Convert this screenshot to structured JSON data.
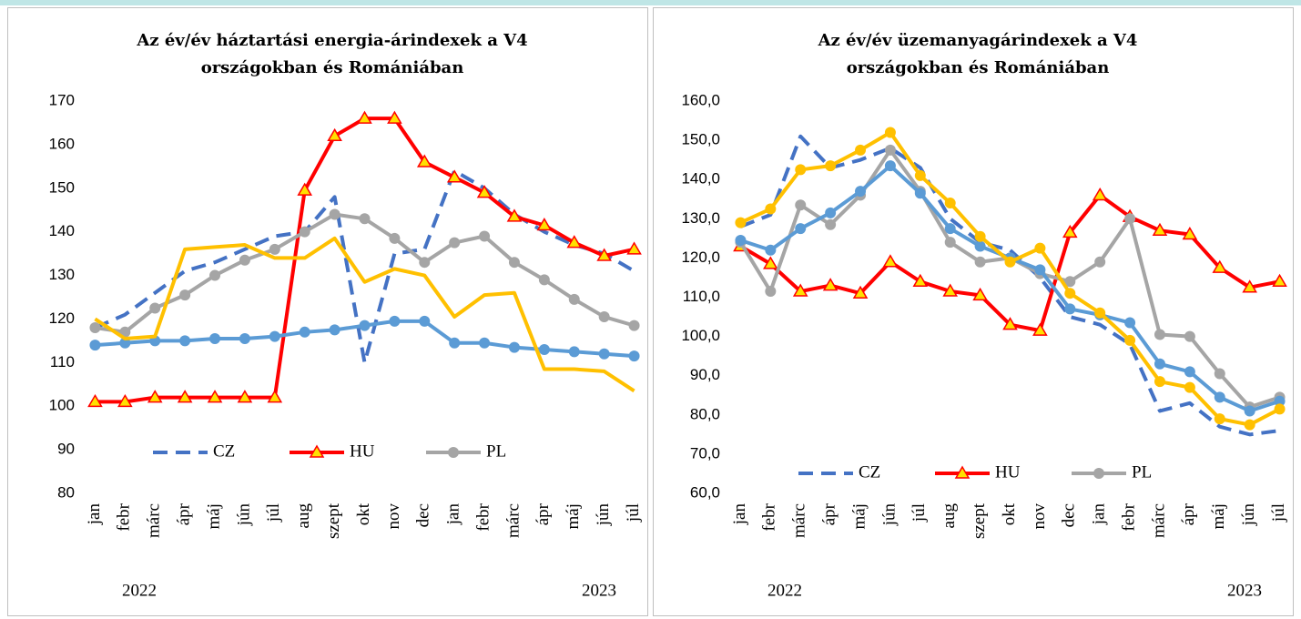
{
  "chart_data": [
    {
      "type": "line",
      "title": [
        "Az év/év háztartási energia-árindexek a V4",
        "országokban és Romániában"
      ],
      "categories": [
        "jan",
        "febr",
        "márc",
        "ápr",
        "máj",
        "jún",
        "júl",
        "aug",
        "szept",
        "okt",
        "nov",
        "dec",
        "jan",
        "febr",
        "márc",
        "ápr",
        "máj",
        "jún",
        "júl"
      ],
      "year_labels": [
        "2022",
        "2023"
      ],
      "ylim": [
        80,
        170
      ],
      "yticks": [
        80,
        90,
        100,
        110,
        120,
        130,
        140,
        150,
        160,
        170
      ],
      "grid": false,
      "series": [
        {
          "name": "CZ",
          "color": "#4472c4",
          "dash": true,
          "marker": "none",
          "values": [
            118,
            121,
            126,
            131,
            133,
            136,
            139,
            140,
            148,
            110,
            135,
            136,
            154,
            150,
            144,
            140,
            137,
            135,
            131
          ]
        },
        {
          "name": "HU",
          "color": "#ff0000",
          "marker": "triangle",
          "marker_fill": "#ffe000",
          "values": [
            101,
            101,
            102,
            102,
            102,
            102,
            102,
            149.5,
            162,
            166,
            166,
            156,
            152.5,
            149,
            143.5,
            141.5,
            137.5,
            134.5,
            136
          ]
        },
        {
          "name": "PL",
          "color": "#a5a5a5",
          "marker": "circle",
          "values": [
            118,
            117,
            122.5,
            125.5,
            130,
            133.5,
            136,
            140,
            144,
            143,
            138.5,
            133,
            137.5,
            139,
            133,
            129,
            124.5,
            120.5,
            118.5
          ]
        },
        {
          "color": "#5b9bd5",
          "marker": "circle",
          "values": [
            114,
            114.5,
            115,
            115,
            115.5,
            115.5,
            116,
            117,
            117.5,
            118.5,
            119.5,
            119.5,
            114.5,
            114.5,
            113.5,
            113,
            112.5,
            112,
            111.5
          ]
        },
        {
          "color": "#ffc000",
          "marker": "none",
          "values": [
            120,
            115.5,
            116,
            136,
            136.5,
            137,
            134,
            134,
            138.5,
            128.5,
            131.5,
            130,
            120.5,
            125.5,
            126,
            108.5,
            108.5,
            108,
            103.5
          ]
        }
      ]
    },
    {
      "type": "line",
      "title": [
        "Az év/év üzemanyagárindexek a V4",
        "országokban és Romániában"
      ],
      "categories": [
        "jan",
        "febr",
        "márc",
        "ápr",
        "máj",
        "jún",
        "júl",
        "aug",
        "szept",
        "okt",
        "nov",
        "dec",
        "jan",
        "febr",
        "márc",
        "ápr",
        "máj",
        "jún",
        "júl"
      ],
      "year_labels": [
        "2022",
        "2023"
      ],
      "ylim": [
        60,
        160
      ],
      "yticks": [
        {
          "value": 60,
          "label": "60,0"
        },
        {
          "value": 70,
          "label": "70,0"
        },
        {
          "value": 80,
          "label": "80,0"
        },
        {
          "value": 90,
          "label": "90,0"
        },
        {
          "value": 100,
          "label": "100,0"
        },
        {
          "value": 110,
          "label": "110,0"
        },
        {
          "value": 120,
          "label": "120,0"
        },
        {
          "value": 130,
          "label": "130,0"
        },
        {
          "value": 140,
          "label": "140,0"
        },
        {
          "value": 150,
          "label": "150,0"
        },
        {
          "value": 160,
          "label": "160,0"
        }
      ],
      "grid": false,
      "series": [
        {
          "name": "CZ",
          "color": "#4472c4",
          "dash": true,
          "marker": "none",
          "values": [
            128,
            131,
            151,
            143,
            145,
            148,
            143,
            130,
            124,
            122,
            115,
            105,
            103,
            98,
            81,
            83,
            77,
            75,
            76
          ]
        },
        {
          "name": "HU",
          "color": "#ff0000",
          "marker": "triangle",
          "marker_fill": "#ffe000",
          "values": [
            123,
            118.5,
            111.5,
            113,
            111,
            119,
            114,
            111.5,
            110.5,
            103,
            101.5,
            126.5,
            136,
            130.5,
            127,
            126,
            117.5,
            112.5,
            114
          ]
        },
        {
          "name": "PL",
          "color": "#a5a5a5",
          "marker": "circle",
          "values": [
            124,
            111.5,
            133.5,
            128.5,
            136,
            147.5,
            137,
            124,
            119,
            120,
            116,
            114,
            119,
            130,
            100.5,
            100,
            90.5,
            82,
            84.5
          ]
        },
        {
          "color": "#5b9bd5",
          "marker": "circle",
          "values": [
            124.5,
            122,
            127.5,
            131.5,
            137,
            143.5,
            136.5,
            127.5,
            123,
            120,
            117,
            107,
            105.5,
            103.5,
            93,
            91,
            84.5,
            81,
            83.5
          ]
        },
        {
          "color": "#ffc000",
          "marker": "circle",
          "values": [
            129,
            132.5,
            142.5,
            143.5,
            147.5,
            152,
            141,
            134,
            125.5,
            119,
            122.5,
            111,
            106,
            99,
            88.5,
            87,
            79,
            77.5,
            81.5
          ]
        }
      ]
    }
  ]
}
